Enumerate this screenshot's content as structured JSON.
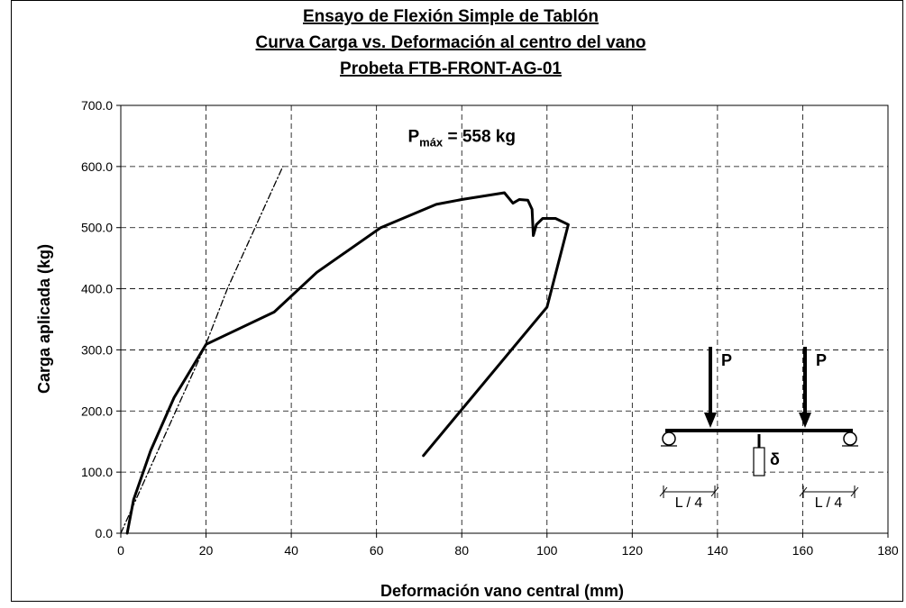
{
  "chart_data": {
    "type": "line",
    "title_lines": [
      "Ensayo de Flexión Simple de Tablón",
      "Curva Carga vs. Deformación al centro del vano",
      "Probeta FTB-FRONT-AG-01"
    ],
    "xlabel": "Deformación vano central (mm)",
    "ylabel": "Carga aplicada (kg)",
    "xlim": [
      0,
      180
    ],
    "ylim": [
      0,
      700
    ],
    "x_ticks": [
      "0",
      "20",
      "40",
      "60",
      "80",
      "100",
      "120",
      "140",
      "160",
      "180"
    ],
    "y_ticks": [
      "0.0",
      "100.0",
      "200.0",
      "300.0",
      "400.0",
      "500.0",
      "600.0",
      "700.0"
    ],
    "grid": true,
    "series": [
      {
        "style": "solid",
        "color": "#000000",
        "x": [
          1.5,
          3,
          7,
          12.5,
          20,
          36,
          46,
          61,
          74,
          80,
          90,
          92,
          93.5,
          95.5,
          96.5,
          96.8,
          97.5,
          99,
          102,
          105,
          100,
          71
        ],
        "y": [
          0,
          55,
          135,
          222,
          309,
          362,
          427,
          500,
          538,
          546,
          557,
          540,
          546,
          545,
          530,
          487,
          505,
          515,
          515,
          505,
          370,
          127
        ]
      },
      {
        "style": "dashdot",
        "color": "#000000",
        "x": [
          0,
          10,
          20,
          25,
          38
        ],
        "y": [
          0,
          155,
          310,
          400,
          600
        ]
      }
    ],
    "annotation": {
      "prefix": "P",
      "subscript": "máx",
      "suffix": " = 558 kg",
      "x": 80,
      "y": 640
    }
  },
  "diagram": {
    "load_label_left": "P",
    "load_label_right": "P",
    "deflection_symbol": "δ",
    "quarter_label_left": "L / 4",
    "quarter_label_right": "L / 4"
  }
}
